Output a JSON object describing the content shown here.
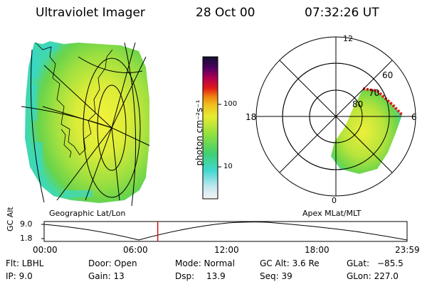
{
  "header": {
    "title": "Ultraviolet Imager",
    "date": "28 Oct 00",
    "time": "07:32:26 UT"
  },
  "colorbar": {
    "unit_label": "photon cm⁻²s⁻¹",
    "ticks": [
      "100",
      "10"
    ]
  },
  "geo_panel": {
    "caption": "Geographic Lat/Lon"
  },
  "polar_panel": {
    "caption": "Apex MLat/MLT",
    "mlt_labels": {
      "top": "12",
      "left": "18",
      "right": "6",
      "bottom": "0"
    },
    "lat_labels": [
      "60",
      "70",
      "80"
    ]
  },
  "timeline": {
    "ylabel": "GC Alt",
    "yticks": [
      "9.0",
      "1.8"
    ],
    "xticks": [
      "00:00",
      "06:00",
      "12:00",
      "18:00",
      "23:59"
    ],
    "current_time_fraction": 0.313
  },
  "info": {
    "filter": "Flt: LBHL",
    "ip": "IP: 9.0",
    "door": "Door: Open",
    "gain": "Gain: 13",
    "mode": "Mode: Normal",
    "dsp": "Dsp:",
    "dsp_value": "13.9",
    "gc_alt": "GC Alt: 3.6 Re",
    "seq": "Seq: 39",
    "glat": "GLat:",
    "glat_value": "−85.5",
    "glon": "GLon: 227.0"
  },
  "colors": {
    "aurora_green": "#7fdc3c",
    "aurora_yellow": "#e6ec3c",
    "aurora_cyan": "#3ce0d0",
    "aurora_red": "#e01818",
    "timeline_marker": "#d01010"
  }
}
